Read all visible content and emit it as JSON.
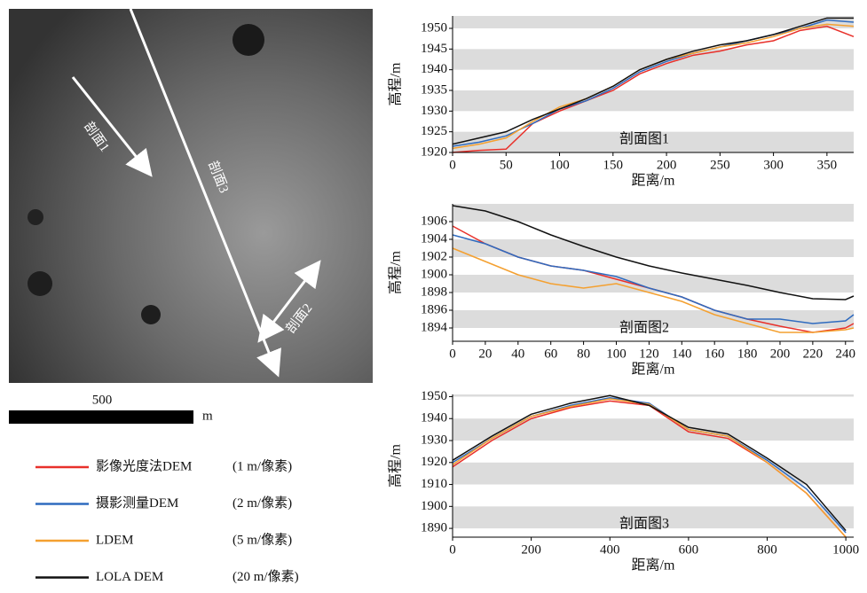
{
  "image": {
    "profiles": [
      {
        "label": "剖面1"
      },
      {
        "label": "剖面3"
      },
      {
        "label": "剖面2"
      }
    ],
    "scale_bar": {
      "label": "500",
      "unit": "m"
    }
  },
  "legend": [
    {
      "name": "影像光度法DEM",
      "resolution": "(1 m/像素)",
      "color": "#e8302a"
    },
    {
      "name": "摄影测量DEM",
      "resolution": "(2 m/像素)",
      "color": "#2f6bbf"
    },
    {
      "name": "LDEM",
      "resolution": "(5 m/像素)",
      "color": "#f4a030"
    },
    {
      "name": "LOLA DEM",
      "resolution": "(20 m/像素)",
      "color": "#111111"
    }
  ],
  "chart_data": [
    {
      "type": "line",
      "title": "剖面图1",
      "x_label": "距离/m",
      "y_label": "高程/m",
      "bands": true,
      "x": [
        0,
        25,
        50,
        75,
        100,
        125,
        150,
        175,
        200,
        225,
        250,
        275,
        300,
        325,
        350,
        375
      ],
      "xlim": [
        0,
        375
      ],
      "xticks": [
        0,
        50,
        100,
        150,
        200,
        250,
        300,
        350
      ],
      "ylim": [
        1920,
        1953
      ],
      "yticks": [
        1920,
        1925,
        1930,
        1935,
        1940,
        1945,
        1950
      ],
      "series": [
        {
          "color": "#e8302a",
          "values": [
            1920,
            1920.5,
            1920.8,
            1927,
            1930,
            1932.5,
            1935,
            1939,
            1941.5,
            1943.5,
            1944.5,
            1946,
            1947,
            1949.5,
            1950.5,
            1948
          ]
        },
        {
          "color": "#2f6bbf",
          "values": [
            1921.5,
            1922.5,
            1924,
            1927,
            1930.5,
            1932.5,
            1935.5,
            1939.5,
            1942,
            1944,
            1945.5,
            1947,
            1948.5,
            1950,
            1952,
            1951.5
          ]
        },
        {
          "color": "#f4a030",
          "values": [
            1921,
            1922,
            1923.5,
            1927.5,
            1931,
            1933,
            1936,
            1940,
            1942.5,
            1944,
            1945.5,
            1946.5,
            1948,
            1950,
            1951,
            1950.5
          ]
        },
        {
          "color": "#111111",
          "values": [
            1922,
            1923.5,
            1925,
            1928,
            1930.5,
            1933,
            1936,
            1940,
            1942.5,
            1944.5,
            1946,
            1947,
            1948.5,
            1950.5,
            1952.5,
            1952.5
          ]
        }
      ]
    },
    {
      "type": "line",
      "title": "剖面图2",
      "x_label": "距离/m",
      "y_label": "高程/m",
      "bands": true,
      "x": [
        0,
        20,
        40,
        60,
        80,
        100,
        120,
        140,
        160,
        180,
        200,
        220,
        240,
        245
      ],
      "xlim": [
        0,
        245
      ],
      "xticks": [
        0,
        20,
        40,
        60,
        80,
        100,
        120,
        140,
        160,
        180,
        200,
        220,
        240
      ],
      "ylim": [
        1892.5,
        1908
      ],
      "yticks": [
        1894,
        1896,
        1898,
        1900,
        1902,
        1904,
        1906
      ],
      "series": [
        {
          "color": "#e8302a",
          "values": [
            1905.5,
            1903.5,
            1902,
            1901,
            1900.5,
            1899.5,
            1898.5,
            1897.5,
            1896,
            1895,
            1894.2,
            1893.5,
            1894,
            1894.5
          ]
        },
        {
          "color": "#2f6bbf",
          "values": [
            1904.5,
            1903.5,
            1902,
            1901,
            1900.5,
            1899.8,
            1898.5,
            1897.5,
            1896,
            1895,
            1895,
            1894.5,
            1894.8,
            1895.5
          ]
        },
        {
          "color": "#f4a030",
          "values": [
            1903,
            1901.5,
            1900,
            1899,
            1898.5,
            1899,
            1898,
            1897,
            1895.5,
            1894.5,
            1893.5,
            1893.5,
            1893.8,
            1894
          ]
        },
        {
          "color": "#111111",
          "values": [
            1907.8,
            1907.2,
            1906,
            1904.5,
            1903.2,
            1902,
            1901,
            1900.2,
            1899.5,
            1898.8,
            1898,
            1897.3,
            1897.2,
            1897.6
          ]
        }
      ]
    },
    {
      "type": "line",
      "title": "剖面图3",
      "x_label": "距离/m",
      "y_label": "高程/m",
      "bands": true,
      "x": [
        0,
        100,
        200,
        300,
        400,
        500,
        600,
        700,
        800,
        900,
        1000
      ],
      "xlim": [
        0,
        1020
      ],
      "xticks": [
        0,
        200,
        400,
        600,
        800,
        1000
      ],
      "ylim": [
        1886,
        1951
      ],
      "yticks": [
        1890,
        1900,
        1910,
        1920,
        1930,
        1940,
        1950
      ],
      "series": [
        {
          "color": "#e8302a",
          "values": [
            1918,
            1930,
            1940,
            1945,
            1948,
            1946,
            1934,
            1931,
            1920,
            1906,
            1886
          ]
        },
        {
          "color": "#2f6bbf",
          "values": [
            1920,
            1931,
            1941,
            1946,
            1949.5,
            1947,
            1935,
            1932,
            1921,
            1908,
            1888
          ]
        },
        {
          "color": "#f4a030",
          "values": [
            1919,
            1931,
            1941,
            1945.5,
            1949,
            1946.5,
            1935,
            1932,
            1920,
            1906,
            1886
          ]
        },
        {
          "color": "#111111",
          "values": [
            1921,
            1932,
            1942,
            1947,
            1950.5,
            1946,
            1936,
            1933,
            1922,
            1910,
            1889
          ]
        }
      ]
    }
  ]
}
